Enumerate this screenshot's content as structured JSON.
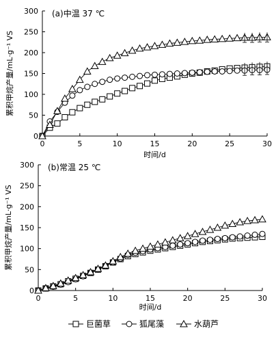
{
  "chart_data": [
    {
      "type": "line",
      "title": "(a)中温 37 ℃",
      "xlabel": "时间/d",
      "ylabel": "累积甲烷产量/mL·g⁻¹ VS",
      "xlim": [
        0,
        30
      ],
      "ylim": [
        0,
        300
      ],
      "xticks": [
        "0",
        "5",
        "10",
        "15",
        "20",
        "25",
        "30"
      ],
      "yticks": [
        "0",
        "50",
        "100",
        "150",
        "200",
        "250",
        "300"
      ],
      "x": [
        0,
        1,
        2,
        3,
        4,
        5,
        6,
        7,
        8,
        9,
        10,
        11,
        12,
        13,
        14,
        15,
        16,
        17,
        18,
        19,
        20,
        21,
        22,
        23,
        24,
        25,
        26,
        27,
        28,
        29,
        30
      ],
      "series": [
        {
          "name": "巨菌草",
          "marker": "square",
          "values": [
            0,
            20,
            30,
            45,
            57,
            67,
            75,
            82,
            88,
            95,
            102,
            108,
            115,
            120,
            126,
            133,
            137,
            140,
            143,
            147,
            150,
            152,
            155,
            157,
            160,
            162,
            163,
            164,
            165,
            166,
            167
          ]
        },
        {
          "name": "狐尾藻",
          "marker": "circle",
          "values": [
            0,
            35,
            58,
            80,
            97,
            110,
            118,
            125,
            130,
            135,
            138,
            140,
            142,
            144,
            146,
            147,
            148,
            149,
            150,
            151,
            152,
            153,
            154,
            155,
            155,
            156,
            157,
            157,
            158,
            158,
            159
          ]
        },
        {
          "name": "水葫芦",
          "marker": "triangle",
          "values": [
            0,
            27,
            60,
            90,
            113,
            135,
            155,
            168,
            178,
            187,
            193,
            199,
            205,
            210,
            213,
            216,
            219,
            222,
            224,
            226,
            228,
            229,
            231,
            232,
            233,
            234,
            235,
            236,
            236,
            237,
            237
          ]
        }
      ]
    },
    {
      "type": "line",
      "title": "(b)常温 25 ℃",
      "xlabel": "时间/d",
      "ylabel": "累积甲烷产量/mL·g⁻¹ VS",
      "xlim": [
        0,
        30
      ],
      "ylim": [
        0,
        300
      ],
      "xticks": [
        "0",
        "5",
        "10",
        "15",
        "20",
        "25",
        "30"
      ],
      "yticks": [
        "0",
        "50",
        "100",
        "150",
        "200",
        "250",
        "300"
      ],
      "x": [
        0,
        1,
        2,
        3,
        4,
        5,
        6,
        7,
        8,
        9,
        10,
        11,
        12,
        13,
        14,
        15,
        16,
        17,
        18,
        19,
        20,
        21,
        22,
        23,
        24,
        25,
        26,
        27,
        28,
        29,
        30
      ],
      "series": [
        {
          "name": "巨菌草",
          "marker": "square",
          "values": [
            0,
            5,
            10,
            15,
            22,
            28,
            35,
            42,
            50,
            58,
            67,
            75,
            82,
            87,
            91,
            95,
            98,
            101,
            104,
            107,
            110,
            113,
            116,
            118,
            120,
            122,
            124,
            125,
            126,
            127,
            128
          ]
        },
        {
          "name": "狐尾藻",
          "marker": "circle",
          "values": [
            0,
            5,
            9,
            14,
            20,
            27,
            34,
            42,
            50,
            58,
            67,
            76,
            85,
            90,
            94,
            98,
            101,
            104,
            107,
            110,
            113,
            116,
            119,
            121,
            123,
            125,
            127,
            129,
            131,
            133,
            135
          ]
        },
        {
          "name": "水葫芦",
          "marker": "triangle",
          "values": [
            0,
            6,
            11,
            17,
            24,
            30,
            37,
            44,
            52,
            60,
            70,
            80,
            88,
            95,
            100,
            105,
            110,
            115,
            120,
            125,
            130,
            135,
            140,
            145,
            150,
            155,
            159,
            163,
            166,
            168,
            170
          ]
        }
      ]
    }
  ],
  "legend": {
    "items": [
      {
        "label": "巨菌草",
        "marker": "square"
      },
      {
        "label": "狐尾藻",
        "marker": "circle"
      },
      {
        "label": "水葫芦",
        "marker": "triangle"
      }
    ]
  }
}
